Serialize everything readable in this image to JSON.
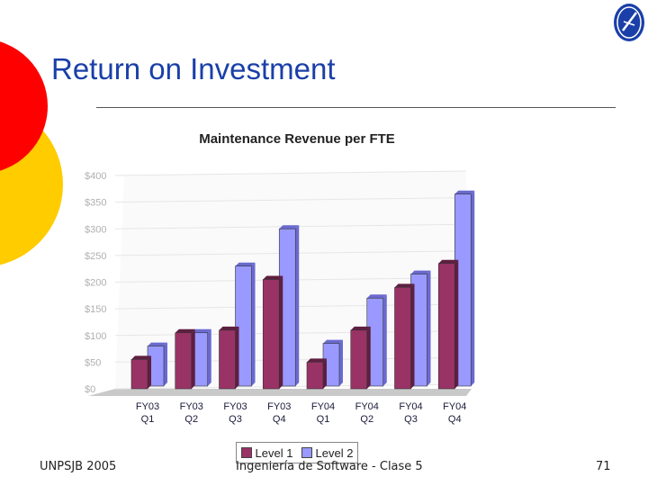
{
  "slide": {
    "title": "Return on Investment",
    "footer_left": "UNPSJB 2005",
    "footer_center": "Ingeniería de Software - Clase 5",
    "page_number": "71"
  },
  "colors": {
    "title": "#1a3fa8",
    "deco_red": "#ff0000",
    "deco_yellow": "#ffcc00",
    "level1": "#993366",
    "level2": "#9999ff"
  },
  "chart_data": {
    "type": "bar",
    "title": "Maintenance Revenue per FTE",
    "categories": [
      [
        "FY03",
        "Q1"
      ],
      [
        "FY03",
        "Q2"
      ],
      [
        "FY03",
        "Q3"
      ],
      [
        "FY03",
        "Q4"
      ],
      [
        "FY04",
        "Q1"
      ],
      [
        "FY04",
        "Q2"
      ],
      [
        "FY04",
        "Q3"
      ],
      [
        "FY04",
        "Q4"
      ]
    ],
    "series": [
      {
        "name": "Level 1",
        "values": [
          55,
          105,
          110,
          205,
          50,
          110,
          190,
          235
        ]
      },
      {
        "name": "Level 2",
        "values": [
          75,
          100,
          225,
          295,
          80,
          165,
          210,
          360
        ]
      }
    ],
    "yticks": [
      "$0",
      "$50",
      "$100",
      "$150",
      "$200",
      "$250",
      "$300",
      "$350",
      "$400"
    ],
    "ylim": [
      0,
      400
    ],
    "xlabel": "",
    "ylabel": "",
    "legend_position": "bottom"
  }
}
